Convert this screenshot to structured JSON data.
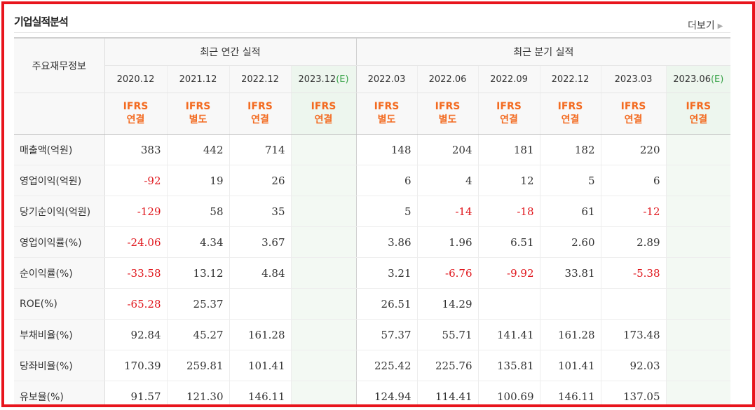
{
  "section": {
    "title": "기업실적분석",
    "more_label": "더보기"
  },
  "table": {
    "row_header_label": "주요재무정보",
    "group_headers": [
      "최근 연간 실적",
      "최근 분기 실적"
    ],
    "periods": [
      {
        "label": "2020.12",
        "est": ""
      },
      {
        "label": "2021.12",
        "est": ""
      },
      {
        "label": "2022.12",
        "est": ""
      },
      {
        "label": "2023.12",
        "est": "(E)"
      },
      {
        "label": "2022.03",
        "est": ""
      },
      {
        "label": "2022.06",
        "est": ""
      },
      {
        "label": "2022.09",
        "est": ""
      },
      {
        "label": "2022.12",
        "est": ""
      },
      {
        "label": "2023.03",
        "est": ""
      },
      {
        "label": "2023.06",
        "est": "(E)"
      }
    ],
    "basis": [
      {
        "std": "IFRS",
        "type": "연결"
      },
      {
        "std": "IFRS",
        "type": "별도"
      },
      {
        "std": "IFRS",
        "type": "연결"
      },
      {
        "std": "IFRS",
        "type": "연결"
      },
      {
        "std": "IFRS",
        "type": "별도"
      },
      {
        "std": "IFRS",
        "type": "별도"
      },
      {
        "std": "IFRS",
        "type": "연결"
      },
      {
        "std": "IFRS",
        "type": "연결"
      },
      {
        "std": "IFRS",
        "type": "연결"
      },
      {
        "std": "IFRS",
        "type": "연결"
      }
    ],
    "rows": [
      {
        "label": "매출액(억원)",
        "values": [
          "383",
          "442",
          "714",
          "",
          "148",
          "204",
          "181",
          "182",
          "220",
          ""
        ]
      },
      {
        "label": "영업이익(억원)",
        "values": [
          "-92",
          "19",
          "26",
          "",
          "6",
          "4",
          "12",
          "5",
          "6",
          ""
        ]
      },
      {
        "label": "당기순이익(억원)",
        "values": [
          "-129",
          "58",
          "35",
          "",
          "5",
          "-14",
          "-18",
          "61",
          "-12",
          ""
        ]
      },
      {
        "label": "영업이익률(%)",
        "values": [
          "-24.06",
          "4.34",
          "3.67",
          "",
          "3.86",
          "1.96",
          "6.51",
          "2.60",
          "2.89",
          ""
        ]
      },
      {
        "label": "순이익률(%)",
        "values": [
          "-33.58",
          "13.12",
          "4.84",
          "",
          "3.21",
          "-6.76",
          "-9.92",
          "33.81",
          "-5.38",
          ""
        ]
      },
      {
        "label": "ROE(%)",
        "values": [
          "-65.28",
          "25.37",
          "",
          "",
          "26.51",
          "14.29",
          "",
          "",
          "",
          ""
        ]
      },
      {
        "label": "부채비율(%)",
        "values": [
          "92.84",
          "45.27",
          "161.28",
          "",
          "57.37",
          "55.71",
          "141.41",
          "161.28",
          "173.48",
          ""
        ]
      },
      {
        "label": "당좌비율(%)",
        "values": [
          "170.39",
          "259.81",
          "101.41",
          "",
          "225.42",
          "225.76",
          "135.81",
          "101.41",
          "92.03",
          ""
        ]
      },
      {
        "label": "유보율(%)",
        "values": [
          "91.57",
          "121.30",
          "146.11",
          "",
          "124.94",
          "114.41",
          "100.69",
          "146.11",
          "137.05",
          ""
        ]
      }
    ]
  },
  "colors": {
    "frame_border": "#e8141c",
    "negative": "#e0161c",
    "ifrs": "#f36b21",
    "estimate": "#3aa44a"
  }
}
